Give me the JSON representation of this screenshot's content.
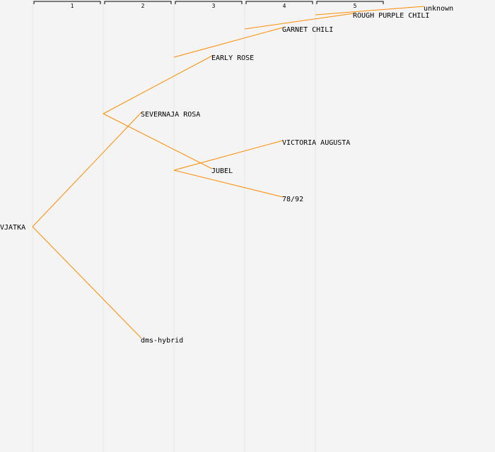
{
  "generations": [
    "1",
    "2",
    "3",
    "4",
    "5"
  ],
  "colors": {
    "edge": "#ff8c00",
    "text": "#000000",
    "background": "#f4f4f4"
  },
  "nodes": [
    {
      "id": "n0",
      "label": "VJATKA",
      "gen": 0,
      "slot": 16
    },
    {
      "id": "n1",
      "label": "SEVERNAJA ROSA",
      "gen": 1,
      "slot": 8,
      "parent": "n0"
    },
    {
      "id": "n2",
      "label": "dms-hybrid",
      "gen": 1,
      "slot": 24,
      "parent": "n0"
    },
    {
      "id": "n3",
      "label": "EARLY ROSE",
      "gen": 2,
      "slot": 4,
      "parent": "n1"
    },
    {
      "id": "n4",
      "label": "JUBEL",
      "gen": 2,
      "slot": 12,
      "parent": "n1"
    },
    {
      "id": "n5",
      "label": "GARNET CHILI",
      "gen": 3,
      "slot": 2,
      "parent": "n3"
    },
    {
      "id": "n6",
      "label": "VICTORIA AUGUSTA",
      "gen": 3,
      "slot": 10,
      "parent": "n4"
    },
    {
      "id": "n7",
      "label": "78/92",
      "gen": 3,
      "slot": 14,
      "parent": "n4"
    },
    {
      "id": "n8",
      "label": "ROUGH PURPLE CHILI",
      "gen": 4,
      "slot": 1,
      "parent": "n5"
    },
    {
      "id": "n9",
      "label": "unknown",
      "gen": 5,
      "slot": 0.5,
      "parent": "n8"
    }
  ]
}
